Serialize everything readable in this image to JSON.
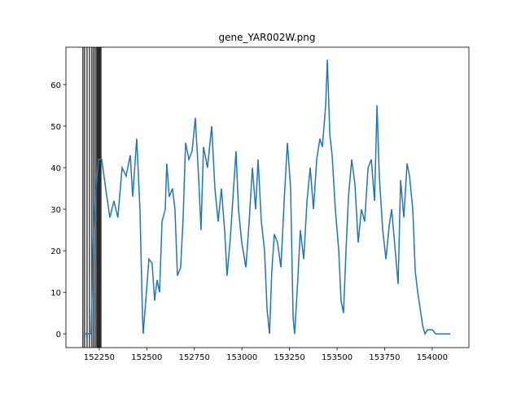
{
  "chart_data": {
    "type": "line",
    "title": "gene_YAR002W.png",
    "x": [
      152160,
      152207,
      152220,
      152233,
      152246,
      152263,
      152284,
      152306,
      152327,
      152348,
      152370,
      152391,
      152413,
      152426,
      152447,
      152464,
      152477,
      152481,
      152498,
      152511,
      152528,
      152541,
      152554,
      152567,
      152580,
      152597,
      152605,
      152618,
      152635,
      152648,
      152661,
      152678,
      152691,
      152704,
      152721,
      152738,
      152755,
      152772,
      152785,
      152798,
      152819,
      152841,
      152858,
      152875,
      152892,
      152909,
      152922,
      152939,
      152956,
      152969,
      152982,
      152999,
      153021,
      153038,
      153055,
      153072,
      153085,
      153102,
      153119,
      153132,
      153145,
      153157,
      153170,
      153187,
      153205,
      153222,
      153239,
      153256,
      153269,
      153277,
      153290,
      153307,
      153325,
      153342,
      153359,
      153376,
      153393,
      153410,
      153423,
      153440,
      153449,
      153462,
      153474,
      153491,
      153509,
      153521,
      153534,
      153547,
      153560,
      153577,
      153594,
      153611,
      153628,
      153645,
      153663,
      153680,
      153697,
      153710,
      153722,
      153740,
      153757,
      153774,
      153787,
      153804,
      153821,
      153834,
      153851,
      153868,
      153881,
      153898,
      153911,
      153924,
      153937,
      153950,
      153962,
      153975,
      154001,
      154018,
      154095
    ],
    "series": [
      {
        "color": "#1f77b4",
        "values": [
          0,
          0,
          25,
          35,
          42,
          42,
          35,
          28,
          32,
          28,
          40,
          38,
          43,
          33,
          47,
          30,
          5,
          0,
          10,
          18,
          17,
          8,
          13,
          10,
          27,
          30,
          41,
          33,
          35,
          30,
          14,
          16,
          28,
          46,
          42,
          44,
          52,
          38,
          25,
          45,
          40,
          50,
          35,
          27,
          35,
          25,
          14,
          23,
          35,
          44,
          30,
          22,
          16,
          27,
          40,
          30,
          42,
          27,
          20,
          6,
          0,
          15,
          24,
          22,
          16,
          32,
          46,
          35,
          4,
          0,
          10,
          25,
          18,
          32,
          40,
          30,
          42,
          47,
          45,
          55,
          66,
          48,
          43,
          30,
          20,
          8,
          5,
          20,
          33,
          42,
          36,
          22,
          30,
          27,
          40,
          42,
          32,
          55,
          38,
          25,
          18,
          26,
          30,
          21,
          12,
          37,
          28,
          41,
          38,
          30,
          15,
          10,
          6,
          2,
          0,
          1,
          1,
          0,
          0
        ]
      }
    ],
    "vlines": {
      "color": "#000000",
      "x": [
        152164,
        152173,
        152186,
        152199,
        152211,
        152220,
        152229,
        152237,
        152241,
        152246,
        152250,
        152254,
        152259
      ]
    },
    "xlim": [
      152075,
      154193
    ],
    "ylim": [
      -3.3,
      69
    ],
    "xticks": [
      152250,
      152500,
      152750,
      153000,
      153250,
      153500,
      153750,
      154000
    ],
    "yticks": [
      0,
      10,
      20,
      30,
      40,
      50,
      60
    ]
  }
}
